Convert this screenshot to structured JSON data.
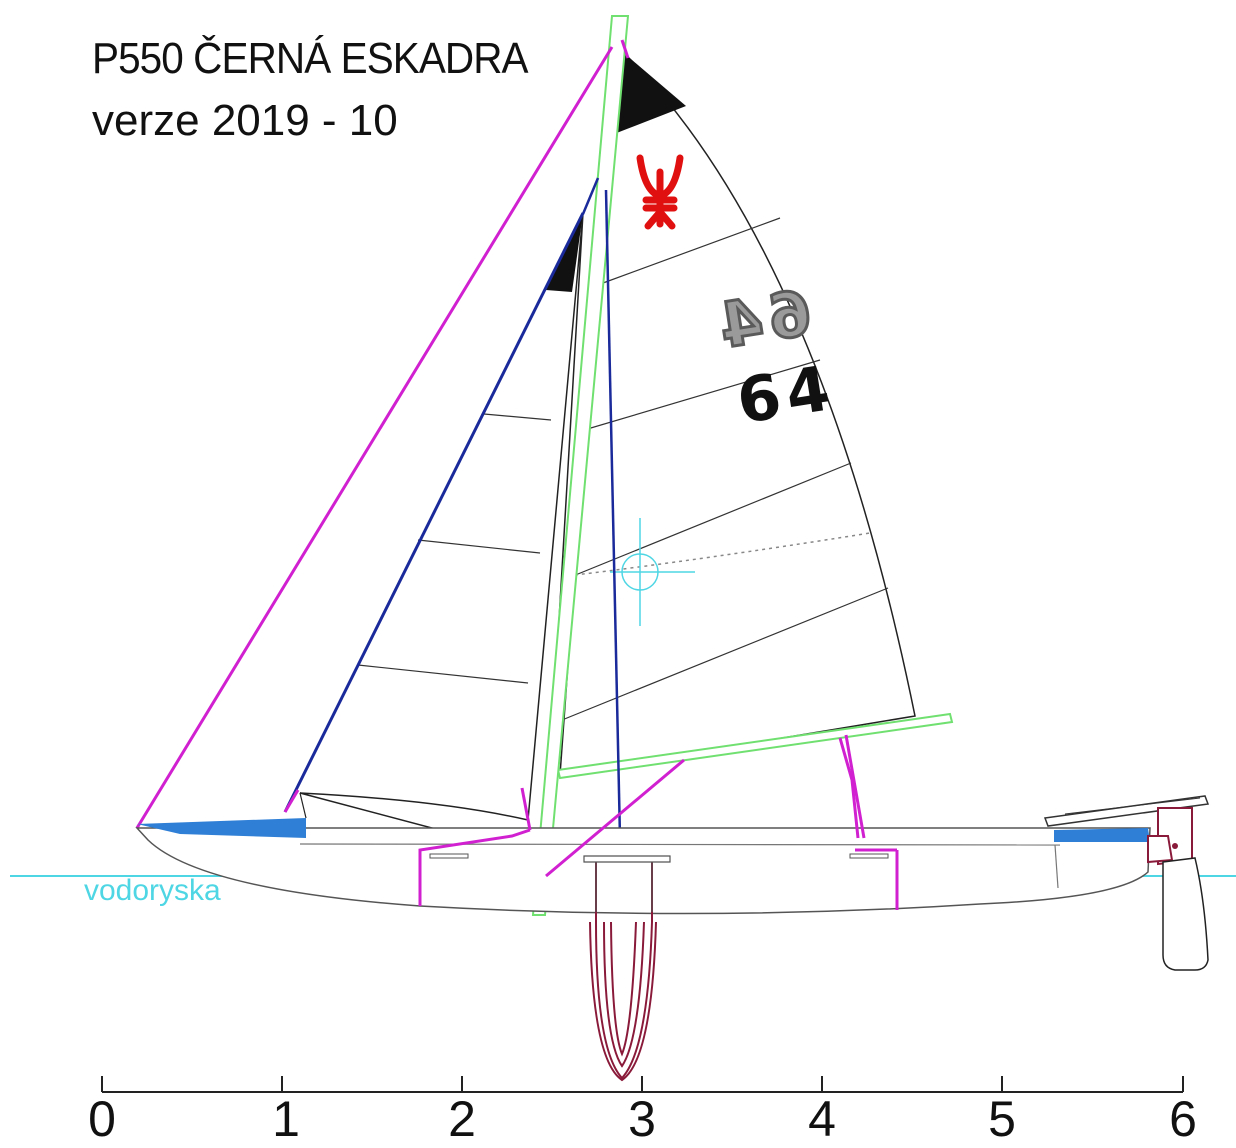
{
  "title": {
    "line1": "P550 ČERNÁ ESKADRA",
    "line2": "verze 2019 - 10"
  },
  "waterline": {
    "label": "vodoryska"
  },
  "sail": {
    "number": "64",
    "emblem": "red-trident-emblem"
  },
  "scale": {
    "ticks": [
      {
        "value": 0,
        "label": "0"
      },
      {
        "value": 1,
        "label": "1"
      },
      {
        "value": 2,
        "label": "2"
      },
      {
        "value": 3,
        "label": "3"
      },
      {
        "value": 4,
        "label": "4"
      },
      {
        "value": 5,
        "label": "5"
      },
      {
        "value": 6,
        "label": "6"
      }
    ]
  },
  "colors": {
    "forestay": "#d020d0",
    "rigging": "#1a2a9a",
    "mast": "#70e070",
    "waterline": "#4fd6e4",
    "deck_accent": "#2f7fd6",
    "centreboard": "#8a1a3a",
    "emblem": "#e01010",
    "sail_outline": "#222222"
  }
}
